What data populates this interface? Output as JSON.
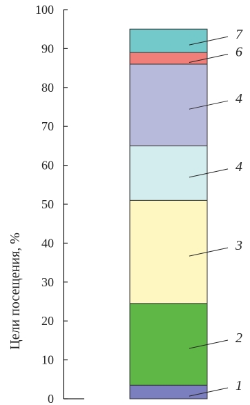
{
  "chart_data": {
    "type": "bar",
    "stacked": true,
    "ylabel": "Цели посещения, %",
    "ylim": [
      0,
      100
    ],
    "yticks": [
      0,
      10,
      20,
      30,
      40,
      50,
      60,
      70,
      80,
      90,
      100
    ],
    "ytick_labels": [
      "0",
      "10",
      "20",
      "30",
      "40",
      "50",
      "60",
      "70",
      "80",
      "90",
      "100"
    ],
    "grid": false,
    "segments": [
      {
        "label": "1",
        "start": 0,
        "end": 3.5,
        "color": "#7b7fc0"
      },
      {
        "label": "2",
        "start": 3.5,
        "end": 24.5,
        "color": "#5fb845"
      },
      {
        "label": "3",
        "start": 24.5,
        "end": 51,
        "color": "#fff7c2"
      },
      {
        "label": "4",
        "start": 51,
        "end": 65,
        "color": "#d3ecee"
      },
      {
        "label": "4",
        "start": 65,
        "end": 86,
        "color": "#b8badc"
      },
      {
        "label": "6",
        "start": 86,
        "end": 89,
        "color": "#f07f79"
      },
      {
        "label": "7",
        "start": 89,
        "end": 95,
        "color": "#73c9c9"
      }
    ]
  }
}
